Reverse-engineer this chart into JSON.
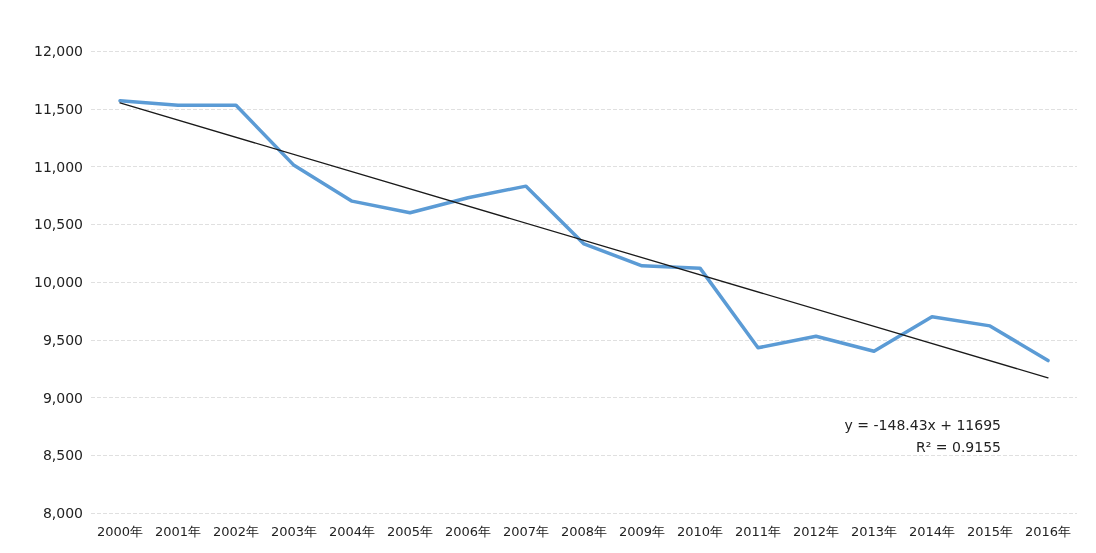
{
  "chart_data": {
    "type": "line",
    "categories": [
      "2000年",
      "2001年",
      "2002年",
      "2003年",
      "2004年",
      "2005年",
      "2006年",
      "2007年",
      "2008年",
      "2009年",
      "2010年",
      "2011年",
      "2012年",
      "2013年",
      "2014年",
      "2015年",
      "2016年"
    ],
    "series": [
      {
        "color": "#5b9bd5",
        "values": [
          11570,
          11530,
          11530,
          11010,
          10700,
          10600,
          10730,
          10830,
          10330,
          10140,
          10120,
          9430,
          9530,
          9400,
          9700,
          9620,
          9320
        ]
      },
      {
        "color": "#1a1a1a",
        "x": [
          "2000年",
          "2016年"
        ],
        "values": [
          11550,
          9170
        ]
      }
    ],
    "ylim": [
      8000,
      12000
    ],
    "yticks": [
      {
        "value": 8000,
        "label": "8,000"
      },
      {
        "value": 8500,
        "label": "8,500"
      },
      {
        "value": 9000,
        "label": "9,000"
      },
      {
        "value": 9500,
        "label": "9,500"
      },
      {
        "value": 10000,
        "label": "10,000"
      },
      {
        "value": 10500,
        "label": "10,500"
      },
      {
        "value": 11000,
        "label": "11,000"
      },
      {
        "value": 11500,
        "label": "11,500"
      },
      {
        "value": 12000,
        "label": "12,000"
      }
    ],
    "grid": "y",
    "marker": "none",
    "line_style": "solid",
    "annotations": [
      "y = -148.43x + 11695",
      "R² = 0.9155"
    ]
  }
}
